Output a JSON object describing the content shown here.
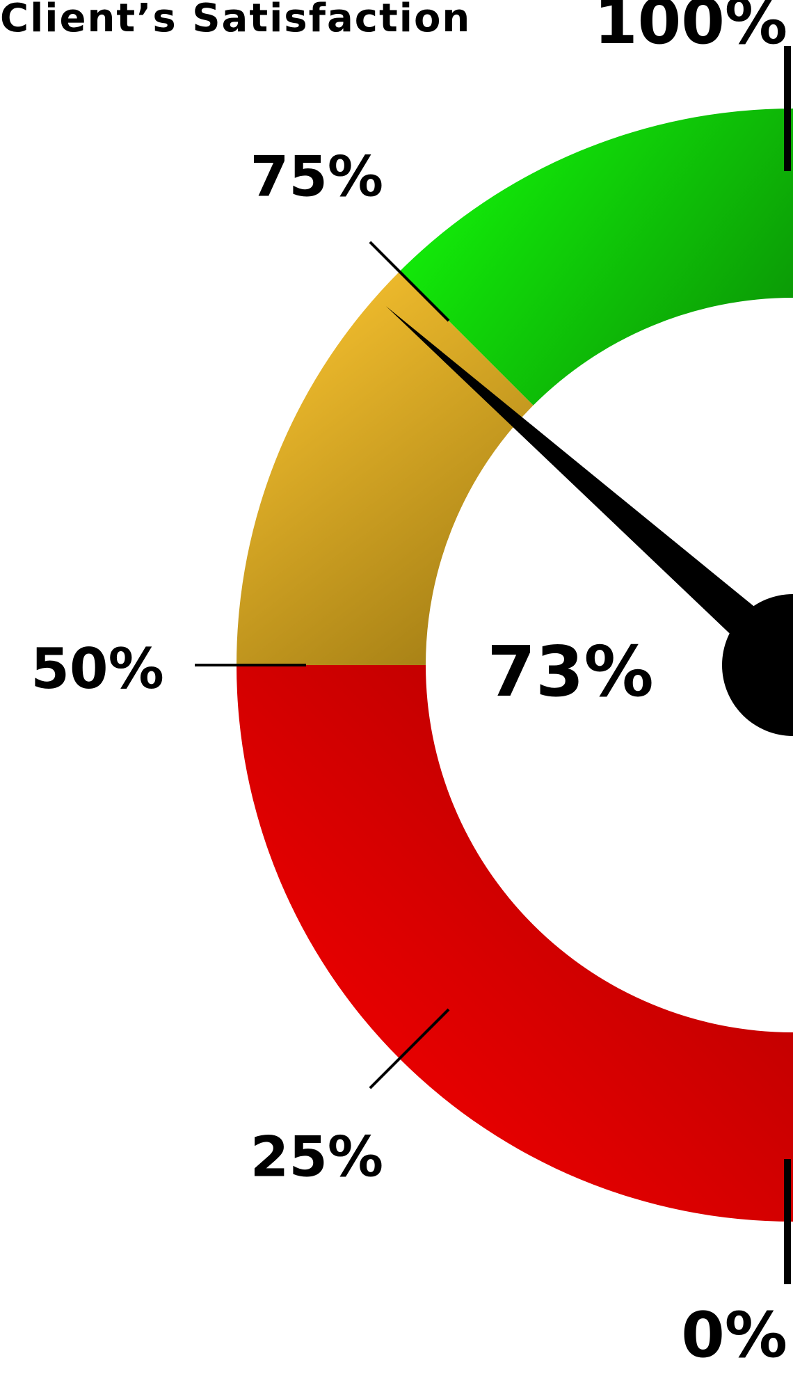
{
  "chart_data": {
    "type": "gauge",
    "title": "Client’s Satisfaction",
    "value": 73,
    "value_label": "73%",
    "min": 0,
    "max": 100,
    "bands": [
      {
        "from": 0,
        "to": 50,
        "color_light": "#ff0000",
        "color_dark": "#a80000"
      },
      {
        "from": 50,
        "to": 75,
        "color_light": "#ffc832",
        "color_dark": "#9c7812"
      },
      {
        "from": 75,
        "to": 100,
        "color_light": "#14ff0a",
        "color_dark": "#0a8c05"
      }
    ],
    "ticks": [
      {
        "value": 0,
        "label": "0%"
      },
      {
        "value": 25,
        "label": "25%"
      },
      {
        "value": 50,
        "label": "50%"
      },
      {
        "value": 75,
        "label": "75%"
      },
      {
        "value": 100,
        "label": "100%"
      }
    ],
    "needle_color": "#000000"
  }
}
